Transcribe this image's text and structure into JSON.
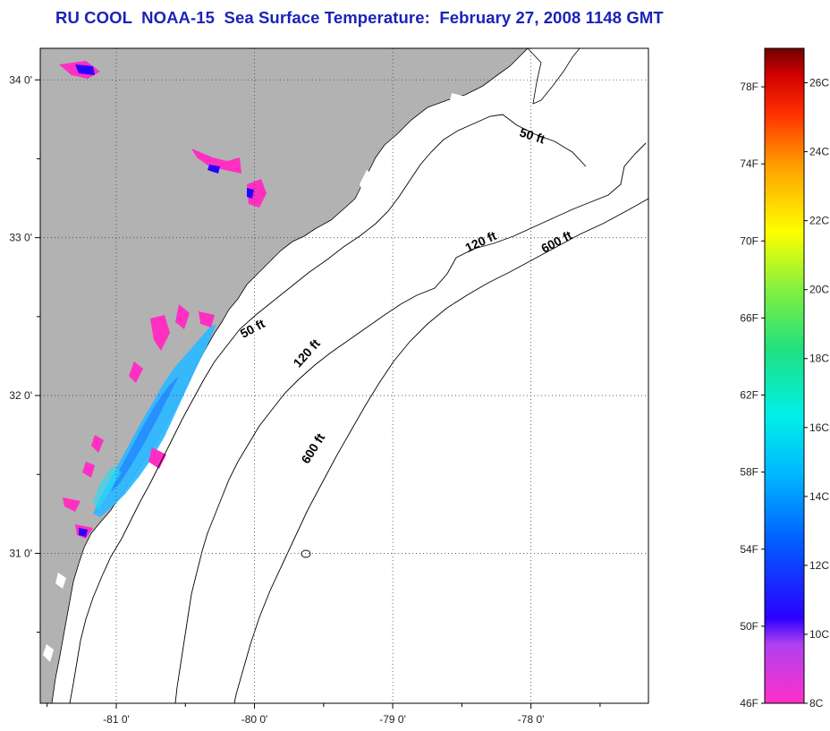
{
  "title": "RU COOL  NOAA-15  Sea Surface Temperature:  February 27, 2008 1148 GMT",
  "map": {
    "lon_range": [
      -81.55,
      -77.15
    ],
    "lat_range": [
      30.05,
      34.2
    ],
    "lon_ticks": [
      {
        "value": -81,
        "label": "-81 0'"
      },
      {
        "value": -80,
        "label": "-80 0'"
      },
      {
        "value": -79,
        "label": "-79 0'"
      },
      {
        "value": -78,
        "label": "-78 0'"
      }
    ],
    "lat_ticks": [
      {
        "value": 34,
        "label": "34 0'"
      },
      {
        "value": 33,
        "label": "33 0'"
      },
      {
        "value": 32,
        "label": "32 0'"
      },
      {
        "value": 31,
        "label": "31 0'"
      }
    ],
    "grid": "dotted",
    "land_color": "#b2b2b2",
    "ocean_color": "#ffffff"
  },
  "contour_labels": [
    {
      "text": "50 ft",
      "lon": -78.0,
      "lat": 33.62,
      "rotate": 18
    },
    {
      "text": "50 ft",
      "lon": -80.0,
      "lat": 32.4,
      "rotate": -28
    },
    {
      "text": "120 ft",
      "lon": -78.35,
      "lat": 32.95,
      "rotate": -25
    },
    {
      "text": "120 ft",
      "lon": -79.6,
      "lat": 32.25,
      "rotate": -48
    },
    {
      "text": "600 ft",
      "lon": -77.8,
      "lat": 32.95,
      "rotate": -28
    },
    {
      "text": "600 ft",
      "lon": -79.55,
      "lat": 31.65,
      "rotate": -58
    }
  ],
  "colorbar": {
    "range_f": [
      46,
      80
    ],
    "range_c": [
      8,
      27
    ],
    "fahrenheit_labels": [
      "78F",
      "74F",
      "70F",
      "66F",
      "62F",
      "58F",
      "54F",
      "50F",
      "46F"
    ],
    "celsius_labels": [
      "26C",
      "24C",
      "22C",
      "20C",
      "18C",
      "16C",
      "14C",
      "12C",
      "10C",
      "8C"
    ],
    "fahrenheit_values": [
      78,
      74,
      70,
      66,
      62,
      58,
      54,
      50,
      46
    ],
    "celsius_values": [
      26,
      24,
      22,
      20,
      18,
      16,
      14,
      12,
      10,
      8
    ],
    "colors": [
      "#ff30c8",
      "#b040f0",
      "#2a00ff",
      "#0060ff",
      "#00b8ff",
      "#00f0e8",
      "#20e080",
      "#80f040",
      "#ffff00",
      "#ffa000",
      "#ff3000",
      "#d00000",
      "#700000"
    ]
  }
}
